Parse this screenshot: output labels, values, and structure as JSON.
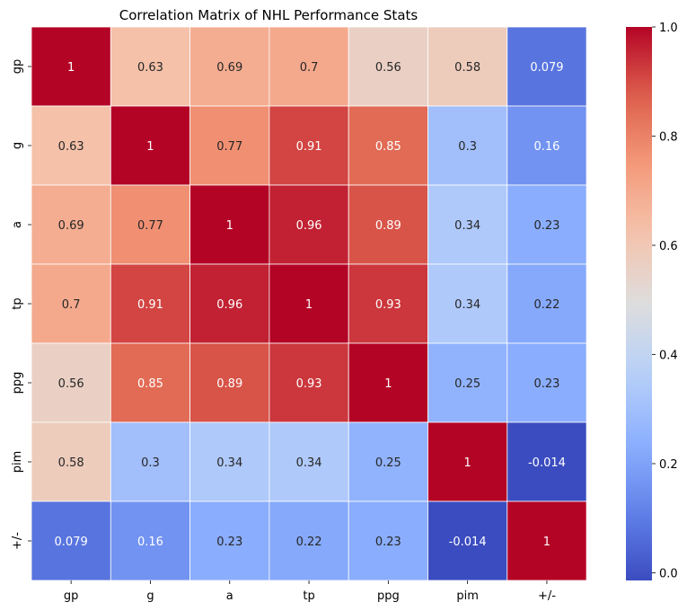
{
  "chart_data": {
    "type": "heatmap",
    "title": "Correlation Matrix of NHL Performance Stats",
    "xlabel": "",
    "ylabel": "",
    "x_labels": [
      "gp",
      "g",
      "a",
      "tp",
      "ppg",
      "pim",
      "+/-"
    ],
    "y_labels": [
      "gp",
      "g",
      "a",
      "tp",
      "ppg",
      "pim",
      "+/-"
    ],
    "values": [
      [
        1,
        0.63,
        0.69,
        0.7,
        0.56,
        0.58,
        0.079
      ],
      [
        0.63,
        1,
        0.77,
        0.91,
        0.85,
        0.3,
        0.16
      ],
      [
        0.69,
        0.77,
        1,
        0.96,
        0.89,
        0.34,
        0.23
      ],
      [
        0.7,
        0.91,
        0.96,
        1,
        0.93,
        0.34,
        0.22
      ],
      [
        0.56,
        0.85,
        0.89,
        0.93,
        1,
        0.25,
        0.23
      ],
      [
        0.58,
        0.3,
        0.34,
        0.34,
        0.25,
        1,
        -0.014
      ],
      [
        0.079,
        0.16,
        0.23,
        0.22,
        0.23,
        -0.014,
        1
      ]
    ],
    "labels": [
      [
        "1",
        "0.63",
        "0.69",
        "0.7",
        "0.56",
        "0.58",
        "0.079"
      ],
      [
        "0.63",
        "1",
        "0.77",
        "0.91",
        "0.85",
        "0.3",
        "0.16"
      ],
      [
        "0.69",
        "0.77",
        "1",
        "0.96",
        "0.89",
        "0.34",
        "0.23"
      ],
      [
        "0.7",
        "0.91",
        "0.96",
        "1",
        "0.93",
        "0.34",
        "0.22"
      ],
      [
        "0.56",
        "0.85",
        "0.89",
        "0.93",
        "1",
        "0.25",
        "0.23"
      ],
      [
        "0.58",
        "0.3",
        "0.34",
        "0.34",
        "0.25",
        "1",
        "-0.014"
      ],
      [
        "0.079",
        "0.16",
        "0.23",
        "0.22",
        "0.23",
        "-0.014",
        "1"
      ]
    ],
    "colormap": "coolwarm",
    "vmin": -0.014,
    "vmax": 1,
    "colorbar_ticks": [
      "0.0",
      "0.2",
      "0.4",
      "0.6",
      "0.8",
      "1.0"
    ],
    "colorbar_tick_values": [
      0.0,
      0.2,
      0.4,
      0.6,
      0.8,
      1.0
    ],
    "cell_border_color": "#ffffff",
    "text_color_dark_cells": "#ffffff",
    "text_color_light_cells": "#262626"
  }
}
